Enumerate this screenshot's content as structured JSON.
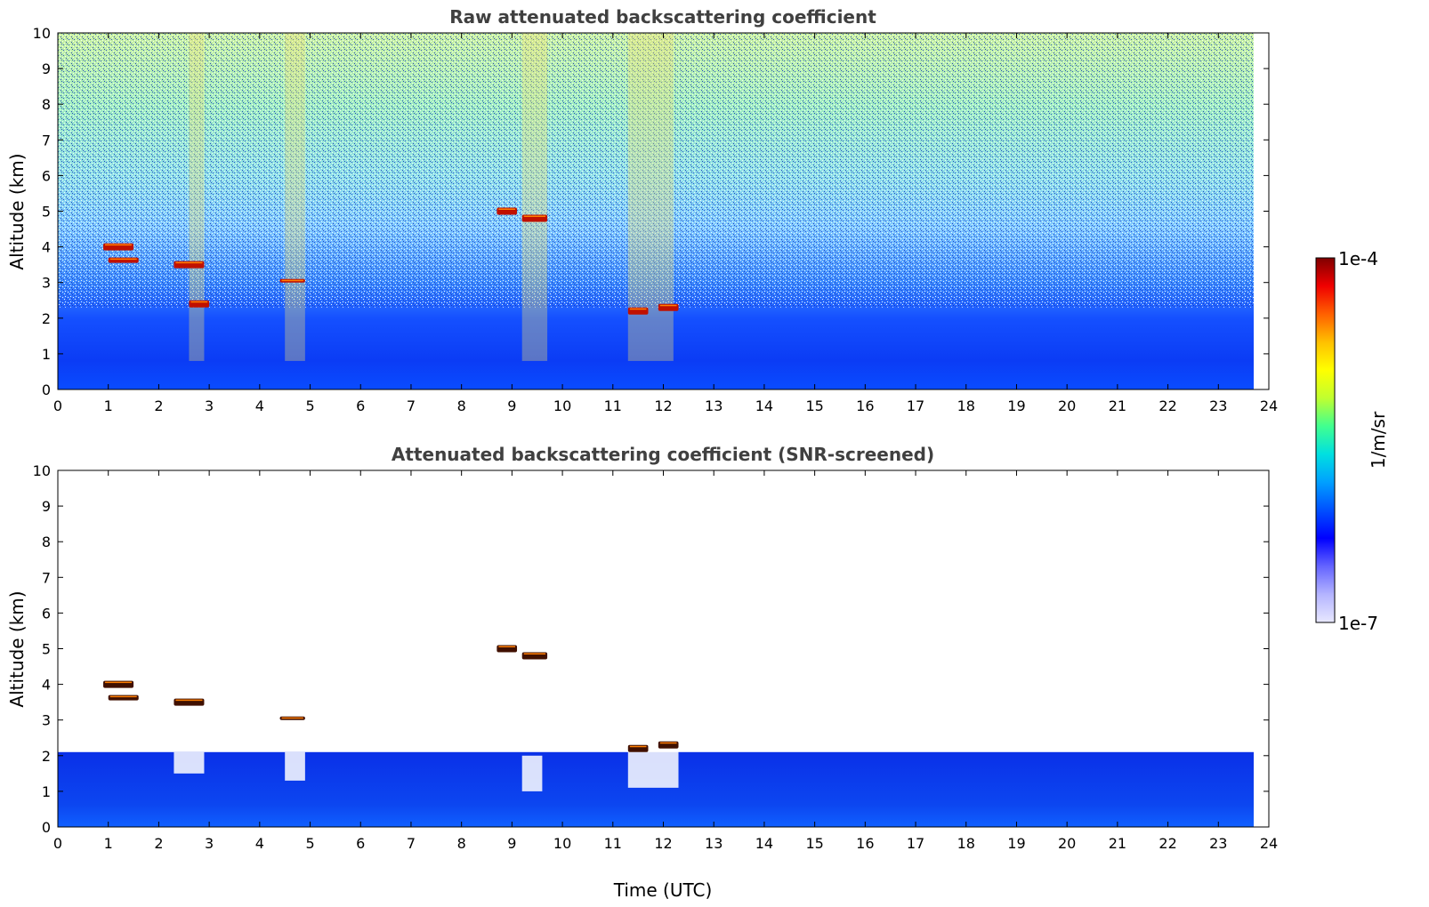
{
  "chart_data": [
    {
      "type": "heatmap",
      "title": "Raw attenuated backscattering coefficient",
      "xlabel": "",
      "ylabel": "Altitude (km)",
      "xlim": [
        0,
        24
      ],
      "ylim": [
        0,
        10
      ],
      "xticks": [
        "0",
        "1",
        "2",
        "3",
        "4",
        "5",
        "6",
        "7",
        "8",
        "9",
        "10",
        "11",
        "12",
        "13",
        "14",
        "15",
        "16",
        "17",
        "18",
        "19",
        "20",
        "21",
        "22",
        "23",
        "24"
      ],
      "yticks": [
        "0",
        "1",
        "2",
        "3",
        "4",
        "5",
        "6",
        "7",
        "8",
        "9",
        "10"
      ],
      "data_end_time": 23.7,
      "cloud_layers": [
        {
          "time": [
            0.9,
            1.5
          ],
          "altitude": [
            3.9,
            4.1
          ]
        },
        {
          "time": [
            1.0,
            1.6
          ],
          "altitude": [
            3.55,
            3.7
          ]
        },
        {
          "time": [
            2.3,
            2.9
          ],
          "altitude": [
            3.4,
            3.6
          ]
        },
        {
          "time": [
            2.6,
            3.0
          ],
          "altitude": [
            2.3,
            2.5
          ]
        },
        {
          "time": [
            4.4,
            4.9
          ],
          "altitude": [
            3.0,
            3.1
          ]
        },
        {
          "time": [
            8.7,
            9.1
          ],
          "altitude": [
            4.9,
            5.1
          ]
        },
        {
          "time": [
            9.2,
            9.7
          ],
          "altitude": [
            4.7,
            4.9
          ]
        },
        {
          "time": [
            11.3,
            11.7
          ],
          "altitude": [
            2.1,
            2.3
          ]
        },
        {
          "time": [
            11.9,
            12.3
          ],
          "altitude": [
            2.2,
            2.4
          ]
        }
      ],
      "precipitation_streaks": [
        {
          "time": [
            2.6,
            2.9
          ]
        },
        {
          "time": [
            4.5,
            4.9
          ]
        },
        {
          "time": [
            9.2,
            9.7
          ]
        },
        {
          "time": [
            11.3,
            12.2
          ]
        }
      ]
    },
    {
      "type": "heatmap",
      "title": "Attenuated backscattering coefficient (SNR-screened)",
      "xlabel": "Time (UTC)",
      "ylabel": "Altitude (km)",
      "xlim": [
        0,
        24
      ],
      "ylim": [
        0,
        10
      ],
      "xticks": [
        "0",
        "1",
        "2",
        "3",
        "4",
        "5",
        "6",
        "7",
        "8",
        "9",
        "10",
        "11",
        "12",
        "13",
        "14",
        "15",
        "16",
        "17",
        "18",
        "19",
        "20",
        "21",
        "22",
        "23",
        "24"
      ],
      "yticks": [
        "0",
        "1",
        "2",
        "3",
        "4",
        "5",
        "6",
        "7",
        "8",
        "9",
        "10"
      ],
      "data_end_time": 23.7,
      "boundary_layer_top_km": 2.1,
      "cloud_layers": [
        {
          "time": [
            0.9,
            1.5
          ],
          "altitude": [
            3.9,
            4.1
          ]
        },
        {
          "time": [
            1.0,
            1.6
          ],
          "altitude": [
            3.55,
            3.7
          ]
        },
        {
          "time": [
            2.3,
            2.9
          ],
          "altitude": [
            3.4,
            3.6
          ]
        },
        {
          "time": [
            4.4,
            4.9
          ],
          "altitude": [
            3.0,
            3.1
          ]
        },
        {
          "time": [
            8.7,
            9.1
          ],
          "altitude": [
            4.9,
            5.1
          ]
        },
        {
          "time": [
            9.2,
            9.7
          ],
          "altitude": [
            4.7,
            4.9
          ]
        },
        {
          "time": [
            11.3,
            11.7
          ],
          "altitude": [
            2.1,
            2.3
          ]
        },
        {
          "time": [
            11.9,
            12.3
          ],
          "altitude": [
            2.2,
            2.4
          ]
        }
      ],
      "gaps": [
        {
          "time": [
            2.3,
            2.9
          ],
          "altitude": [
            1.5,
            2.1
          ]
        },
        {
          "time": [
            4.5,
            4.9
          ],
          "altitude": [
            1.3,
            2.1
          ]
        },
        {
          "time": [
            9.2,
            9.6
          ],
          "altitude": [
            1.0,
            2.0
          ]
        },
        {
          "time": [
            11.3,
            12.3
          ],
          "altitude": [
            1.1,
            2.2
          ]
        }
      ]
    }
  ],
  "colorbar": {
    "max_label": "1e-4",
    "min_label": "1e-7",
    "unit_label": "1/m/sr",
    "colors": [
      "#e8e8ff",
      "#b4b4ff",
      "#6464ff",
      "#0000ff",
      "#0050ff",
      "#00a0ff",
      "#00e0e0",
      "#40ff90",
      "#c0ff30",
      "#ffff00",
      "#ffc000",
      "#ff6000",
      "#f00000",
      "#800000"
    ]
  }
}
